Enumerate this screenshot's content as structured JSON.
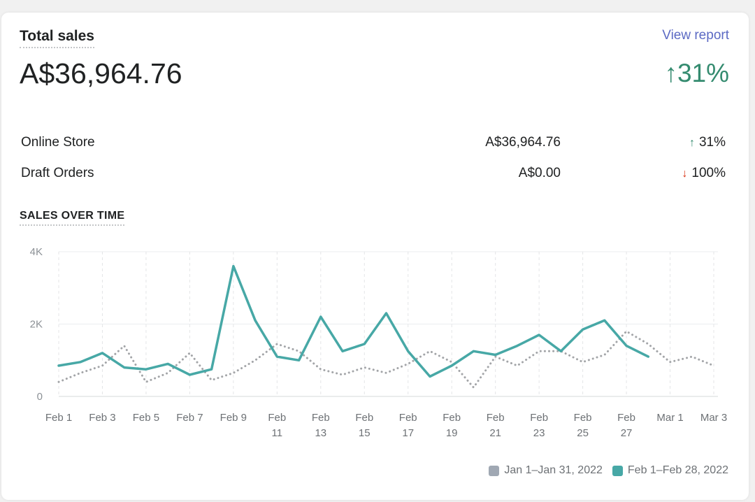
{
  "header": {
    "title": "Total sales",
    "view_report": "View report",
    "total": "A$36,964.76",
    "change_arrow": "↑",
    "change": "31%"
  },
  "breakdown": [
    {
      "label": "Online Store",
      "value": "A$36,964.76",
      "arrow": "↑",
      "change": "31%",
      "direction": "up"
    },
    {
      "label": "Draft Orders",
      "value": "A$0.00",
      "arrow": "↓",
      "change": "100%",
      "direction": "down"
    }
  ],
  "section_title": "SALES OVER TIME",
  "colors": {
    "accent": "#47a8a6",
    "previous": "#a3a5a8",
    "legend_previous": "#a0a8b3",
    "positive": "#348b6f",
    "negative": "#d72c0d",
    "link": "#5c6ac4"
  },
  "chart_data": {
    "type": "line",
    "ylim": [
      0,
      4000
    ],
    "yticks": [
      {
        "value": 0,
        "label": "0"
      },
      {
        "value": 2000,
        "label": "2K"
      },
      {
        "value": 4000,
        "label": "4K"
      }
    ],
    "xticks": [
      {
        "index": 0,
        "lines": [
          "Feb 1"
        ]
      },
      {
        "index": 2,
        "lines": [
          "Feb 3"
        ]
      },
      {
        "index": 4,
        "lines": [
          "Feb 5"
        ]
      },
      {
        "index": 6,
        "lines": [
          "Feb 7"
        ]
      },
      {
        "index": 8,
        "lines": [
          "Feb 9"
        ]
      },
      {
        "index": 10,
        "lines": [
          "Feb",
          "11"
        ]
      },
      {
        "index": 12,
        "lines": [
          "Feb",
          "13"
        ]
      },
      {
        "index": 14,
        "lines": [
          "Feb",
          "15"
        ]
      },
      {
        "index": 16,
        "lines": [
          "Feb",
          "17"
        ]
      },
      {
        "index": 18,
        "lines": [
          "Feb",
          "19"
        ]
      },
      {
        "index": 20,
        "lines": [
          "Feb",
          "21"
        ]
      },
      {
        "index": 22,
        "lines": [
          "Feb",
          "23"
        ]
      },
      {
        "index": 24,
        "lines": [
          "Feb",
          "25"
        ]
      },
      {
        "index": 26,
        "lines": [
          "Feb",
          "27"
        ]
      },
      {
        "index": 28,
        "lines": [
          "Mar 1"
        ]
      },
      {
        "index": 30,
        "lines": [
          "Mar 3"
        ]
      }
    ],
    "x_count": 31,
    "series": [
      {
        "name": "Jan 1–Jan 31, 2022",
        "style": "dotted",
        "values": [
          400,
          650,
          850,
          1400,
          400,
          650,
          1200,
          450,
          650,
          1000,
          1450,
          1250,
          750,
          600,
          800,
          650,
          900,
          1250,
          950,
          250,
          1100,
          850,
          1250,
          1250,
          950,
          1150,
          1800,
          1450,
          950,
          1100,
          850
        ]
      },
      {
        "name": "Feb 1–Feb 28, 2022",
        "style": "solid",
        "values": [
          850,
          950,
          1200,
          800,
          750,
          900,
          600,
          750,
          3600,
          2100,
          1100,
          1000,
          2200,
          1250,
          1450,
          2300,
          1250,
          550,
          850,
          1250,
          1150,
          1400,
          1700,
          1250,
          1850,
          2100,
          1400,
          1100
        ]
      }
    ]
  }
}
